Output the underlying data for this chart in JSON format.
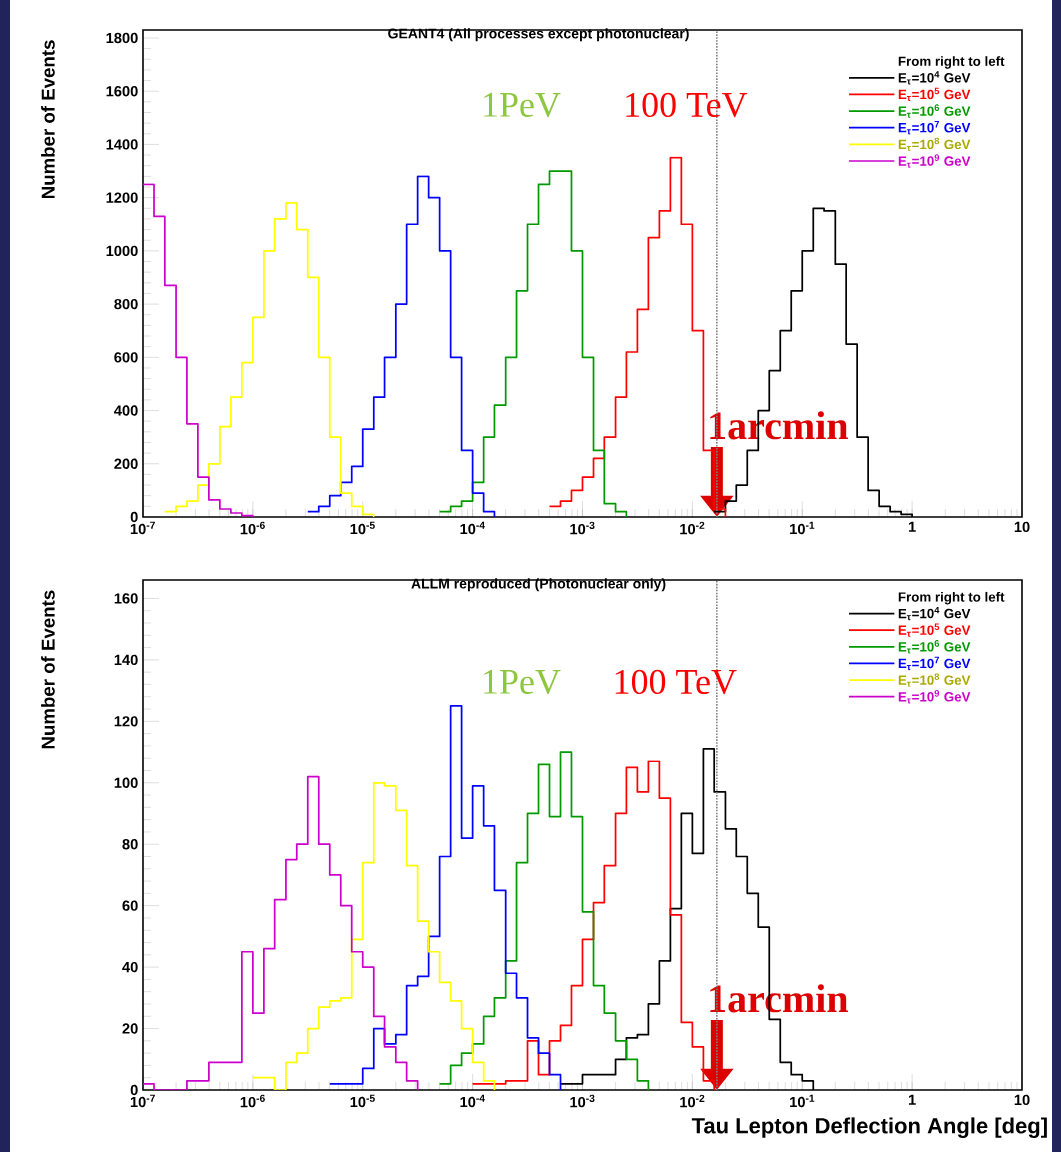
{
  "chart_data": [
    {
      "type": "step",
      "title": "GEANT4 (All processes except photonuclear)",
      "ylabel": "Number of Events",
      "legend_title": "From right to left",
      "legend": "top right",
      "log": "x",
      "xlim": [
        1e-07,
        10
      ],
      "ylim": [
        0,
        1830
      ],
      "xticks": [
        {
          "value": 1e-07,
          "label": "10$^{-7}$"
        },
        {
          "value": 1e-06,
          "label": "10$^{-6}$"
        },
        {
          "value": 1e-05,
          "label": "10$^{-5}$"
        },
        {
          "value": 0.0001,
          "label": "10$^{-4}$"
        },
        {
          "value": 0.001,
          "label": "10$^{-3}$"
        },
        {
          "value": 0.01,
          "label": "10$^{-2}$"
        },
        {
          "value": 0.1,
          "label": "10$^{-1}$"
        },
        1,
        10
      ],
      "yticks": [
        0,
        200,
        400,
        600,
        800,
        1000,
        1200,
        1400,
        1600,
        1800
      ],
      "series": [
        {
          "name": "E$_{τ}$=10$^{4}$ GeV",
          "color": "#000000",
          "x": [
            0.0158,
            0.02,
            0.0251,
            0.0316,
            0.0398,
            0.0501,
            0.0631,
            0.0794,
            0.1,
            0.126,
            0.158,
            0.2,
            0.251,
            0.316,
            0.398,
            0.501,
            0.631,
            0.794,
            1
          ],
          "values": [
            20,
            60,
            120,
            250,
            400,
            550,
            700,
            850,
            1000,
            1160,
            1150,
            950,
            650,
            300,
            100,
            40,
            20,
            10,
            0
          ]
        },
        {
          "name": "E$_{τ}$=10$^{5}$ GeV",
          "color": "#ff0000",
          "x": [
            0.000501,
            0.000631,
            0.000794,
            0.001,
            0.00126,
            0.00158,
            0.002,
            0.00251,
            0.00316,
            0.00398,
            0.00501,
            0.00631,
            0.00794,
            0.01,
            0.0126,
            0.0158,
            0.02
          ],
          "values": [
            40,
            60,
            100,
            150,
            220,
            300,
            450,
            620,
            780,
            1050,
            1150,
            1350,
            1100,
            700,
            250,
            30,
            0
          ]
        },
        {
          "name": "E$_{τ}$=10$^{6}$ GeV",
          "color": "#009900",
          "x": [
            5.01e-05,
            6.31e-05,
            7.94e-05,
            0.0001,
            0.000126,
            0.000158,
            0.0002,
            0.000251,
            0.000316,
            0.000398,
            0.000501,
            0.000631,
            0.000794,
            0.001,
            0.00126,
            0.00158,
            0.002,
            0.00251
          ],
          "values": [
            20,
            40,
            60,
            130,
            300,
            420,
            600,
            850,
            1100,
            1250,
            1300,
            1300,
            1000,
            600,
            250,
            50,
            20,
            0
          ]
        },
        {
          "name": "E$_{τ}$=10$^{7}$ GeV",
          "color": "#0000ff",
          "x": [
            3.16e-06,
            3.98e-06,
            5.01e-06,
            6.31e-06,
            7.94e-06,
            1e-05,
            1.26e-05,
            1.58e-05,
            2e-05,
            2.51e-05,
            3.16e-05,
            3.98e-05,
            5.01e-05,
            6.31e-05,
            7.94e-05,
            0.0001,
            0.000126,
            0.000158
          ],
          "values": [
            20,
            40,
            80,
            130,
            190,
            330,
            450,
            600,
            800,
            1100,
            1280,
            1200,
            1000,
            600,
            250,
            90,
            20,
            0
          ]
        },
        {
          "name": "E$_{τ}$=10$^{8}$ GeV",
          "color": "#ffff00",
          "x": [
            1.58e-07,
            2e-07,
            2.51e-07,
            3.16e-07,
            3.98e-07,
            5.01e-07,
            6.31e-07,
            7.94e-07,
            1e-06,
            1.26e-06,
            1.58e-06,
            2e-06,
            2.51e-06,
            3.16e-06,
            3.98e-06,
            5.01e-06,
            6.31e-06,
            7.94e-06,
            1e-05,
            1.26e-05
          ],
          "values": [
            20,
            40,
            60,
            120,
            200,
            340,
            450,
            580,
            750,
            1000,
            1120,
            1180,
            1080,
            900,
            600,
            300,
            90,
            40,
            10,
            0
          ]
        },
        {
          "name": "E$_{τ}$=10$^{9}$ GeV",
          "color": "#cc00cc",
          "x": [
            1e-07,
            1.26e-07,
            1.58e-07,
            2e-07,
            2.51e-07,
            3.16e-07,
            3.98e-07,
            5.01e-07,
            6.31e-07,
            7.94e-07,
            1e-06
          ],
          "values": [
            1250,
            1130,
            870,
            600,
            350,
            150,
            64,
            30,
            15,
            5,
            0
          ]
        }
      ],
      "ref_lines": [
        {
          "axis": "x",
          "value": 0.0167,
          "line_style": "dotted",
          "color": "#808080"
        }
      ],
      "annotations": [
        "1PeV",
        "100 TeV",
        {
          "text": "1arcmin",
          "x": 0.0167,
          "y": 0
        }
      ]
    },
    {
      "type": "step",
      "title": "ALLM reproduced (Photonuclear only)",
      "xlabel": "Tau Lepton Deflection Angle [deg]",
      "ylabel": "Number of Events",
      "legend_title": "From right to left",
      "legend": "top right",
      "log": "x",
      "xlim": [
        1e-07,
        10
      ],
      "ylim": [
        0,
        166
      ],
      "xticks": [
        {
          "value": 1e-07,
          "label": "10$^{-7}$"
        },
        {
          "value": 1e-06,
          "label": "10$^{-6}$"
        },
        {
          "value": 1e-05,
          "label": "10$^{-5}$"
        },
        {
          "value": 0.0001,
          "label": "10$^{-4}$"
        },
        {
          "value": 0.001,
          "label": "10$^{-3}$"
        },
        {
          "value": 0.01,
          "label": "10$^{-2}$"
        },
        {
          "value": 0.1,
          "label": "10$^{-1}$"
        },
        1,
        10
      ],
      "yticks": [
        0,
        20,
        40,
        60,
        80,
        100,
        120,
        140,
        160
      ],
      "series": [
        {
          "name": "E$_{τ}$=10$^{4}$ GeV",
          "color": "#000000",
          "x": [
            0.000631,
            0.001,
            0.002,
            0.00251,
            0.00316,
            0.00398,
            0.00501,
            0.00631,
            0.00794,
            0.01,
            0.0126,
            0.0158,
            0.02,
            0.0251,
            0.0316,
            0.0398,
            0.0501,
            0.0631,
            0.0794,
            0.1,
            0.126
          ],
          "values": [
            2,
            5,
            10,
            17,
            18,
            28,
            42,
            59,
            90,
            77,
            111,
            97,
            85,
            76,
            64,
            53,
            23,
            9,
            5,
            3,
            0
          ]
        },
        {
          "name": "E$_{τ}$=10$^{5}$ GeV",
          "color": "#ff0000",
          "x": [
            0.0001,
            0.0002,
            0.000316,
            0.000398,
            0.000501,
            0.000631,
            0.000794,
            0.001,
            0.00126,
            0.00158,
            0.002,
            0.00251,
            0.00316,
            0.00398,
            0.00501,
            0.00631,
            0.00794,
            0.01,
            0.0126,
            0.0158
          ],
          "values": [
            2,
            3,
            16,
            5,
            16,
            21,
            34,
            49,
            61,
            73,
            90,
            105,
            97,
            107,
            95,
            57,
            22,
            14,
            3,
            0
          ]
        },
        {
          "name": "E$_{τ}$=10$^{6}$ GeV",
          "color": "#009900",
          "x": [
            5.01e-05,
            6.31e-05,
            7.94e-05,
            0.0001,
            0.000126,
            0.000158,
            0.0002,
            0.000251,
            0.000316,
            0.000398,
            0.000501,
            0.000631,
            0.000794,
            0.001,
            0.00126,
            0.00158,
            0.002,
            0.00251,
            0.00316,
            0.00398
          ],
          "values": [
            2,
            8,
            12,
            15,
            24,
            30,
            42,
            74,
            90,
            106,
            89,
            110,
            89,
            58,
            34,
            25,
            16,
            10,
            3,
            0
          ]
        },
        {
          "name": "E$_{τ}$=10$^{7}$ GeV",
          "color": "#0000ff",
          "x": [
            5.01e-06,
            1e-05,
            1.26e-05,
            1.58e-05,
            2e-05,
            2.51e-05,
            3.16e-05,
            3.98e-05,
            5.01e-05,
            6.31e-05,
            7.94e-05,
            0.0001,
            0.000126,
            0.000158,
            0.0002,
            0.000251,
            0.000316,
            0.000398,
            0.000501,
            0.000631
          ],
          "values": [
            2,
            7,
            20,
            15,
            18,
            34,
            37,
            50,
            76,
            125,
            82,
            99,
            86,
            65,
            38,
            30,
            17,
            12,
            5,
            0
          ]
        },
        {
          "name": "E$_{τ}$=10$^{8}$ GeV",
          "color": "#ffff00",
          "x": [
            1e-06,
            1.26e-06,
            1.58e-06,
            2e-06,
            2.51e-06,
            3.16e-06,
            3.98e-06,
            5.01e-06,
            6.31e-06,
            7.94e-06,
            1e-05,
            1.26e-05,
            1.58e-05,
            2e-05,
            2.51e-05,
            3.16e-05,
            3.98e-05,
            5.01e-05,
            6.31e-05,
            7.94e-05,
            0.0001,
            0.000126,
            0.000158
          ],
          "values": [
            4,
            4,
            0,
            9,
            12,
            20,
            27,
            29,
            30,
            49,
            74,
            100,
            99,
            91,
            73,
            55,
            45,
            35,
            29,
            20,
            9,
            3,
            0
          ]
        },
        {
          "name": "E$_{τ}$=10$^{9}$ GeV",
          "color": "#cc00cc",
          "x": [
            1e-07,
            1.26e-07,
            2.51e-07,
            3.98e-07,
            7.94e-07,
            1e-06,
            1.26e-06,
            1.58e-06,
            2e-06,
            2.51e-06,
            3.16e-06,
            3.98e-06,
            5.01e-06,
            6.31e-06,
            7.94e-06,
            1e-05,
            1.26e-05,
            1.58e-05,
            2e-05,
            2.51e-05,
            3.16e-05
          ],
          "values": [
            2,
            0,
            3,
            9,
            45,
            25,
            46,
            62,
            75,
            80,
            102,
            80,
            70,
            60,
            45,
            40,
            24,
            14,
            9,
            3,
            0
          ]
        }
      ],
      "ref_lines": [
        {
          "axis": "x",
          "value": 0.0167,
          "line_style": "dotted",
          "color": "#808080"
        }
      ],
      "annotations": [
        "1PeV",
        "100 TeV",
        {
          "text": "1arcmin",
          "x": 0.0167,
          "y": 0
        }
      ]
    }
  ]
}
